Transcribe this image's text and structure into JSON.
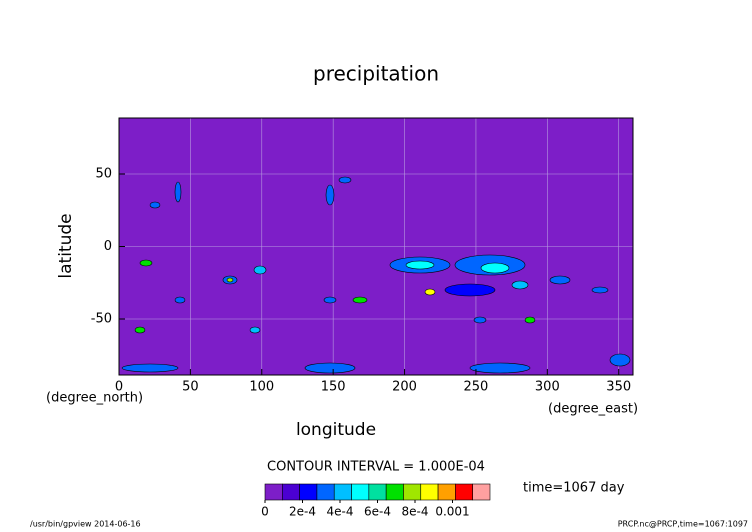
{
  "chart_data": {
    "type": "contour",
    "title": "precipitation",
    "x_label": "longitude",
    "y_label": "latitude",
    "x_unit": "(degree_east)",
    "y_unit": "(degree_north)",
    "xlim": [
      0,
      360
    ],
    "xticks": [
      0,
      50,
      100,
      150,
      200,
      250,
      300,
      350
    ],
    "ylim": [
      -90,
      90
    ],
    "yticks": [
      -50,
      0,
      50
    ],
    "grid": true,
    "background_color": "#7d1ec8",
    "contour_interval": "CONTOUR INTERVAL = 1.000E-04",
    "time_label": "time=1067 day",
    "colorbar": {
      "colors": [
        "#7d1ec8",
        "#4b00d2",
        "#0000ff",
        "#0066ff",
        "#00bfff",
        "#00ffff",
        "#00e0a0",
        "#00e000",
        "#a0e600",
        "#ffff00",
        "#ffa000",
        "#ff0000",
        "#ffa0a0"
      ],
      "ticks": [
        0,
        {
          "value": 0.0002,
          "label": "2e-4"
        },
        {
          "value": 0.0004,
          "label": "4e-4"
        },
        {
          "value": 0.0006,
          "label": "6e-4"
        },
        {
          "value": 0.0008,
          "label": "8e-4"
        },
        0.001
      ],
      "lim": [
        0,
        0.0012
      ]
    },
    "footer_left": "/usr/bin/gpview  2014-06-16",
    "footer_right": "PRCP.nc@PRCP,time=1067:1097"
  }
}
